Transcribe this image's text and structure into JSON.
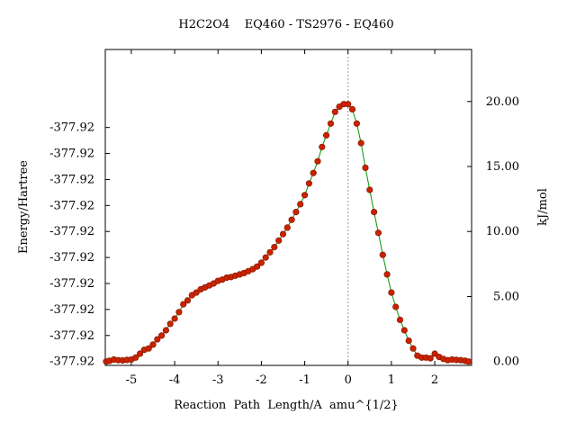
{
  "chart_data": {
    "type": "line",
    "title": "H2C2O4    EQ460 - TS2976 - EQ460",
    "xlabel": "Reaction  Path  Length/A  amu^{1/2}",
    "ylabel_left": "Energy/Hartree",
    "ylabel_right": "kJ/mol",
    "xlim": [
      -5.6,
      2.85
    ],
    "x_ticks": [
      -5,
      -4,
      -3,
      -2,
      -1,
      0,
      1,
      2
    ],
    "x_tick_labels": [
      "-5",
      "-4",
      "-3",
      "-2",
      "-1",
      "0",
      "1",
      "2"
    ],
    "y_left_tick_labels": [
      "-377.92",
      "-377.92",
      "-377.92",
      "-377.92",
      "-377.92",
      "-377.92",
      "-377.92",
      "-377.92",
      "-377.92",
      "-377.92"
    ],
    "y_left_ticks_kj": [
      0.0,
      2.0,
      4.0,
      6.0,
      8.0,
      10.0,
      12.0,
      14.0,
      16.0,
      18.0
    ],
    "ylim_right": [
      -0.3,
      24.0
    ],
    "y_right_ticks": [
      0.0,
      5.0,
      10.0,
      15.0,
      20.0
    ],
    "y_right_tick_labels": [
      "0.00",
      "5.00",
      "10.00",
      "15.00",
      "20.00"
    ],
    "ts_marker_x": 0,
    "grid": false,
    "colors": {
      "line": "#009900",
      "marker": "#cc2200",
      "marker_edge": "#8b1a00",
      "ts_line": "#999999"
    },
    "series": [
      {
        "x": [
          -5.58,
          -5.5,
          -5.4,
          -5.3,
          -5.2,
          -5.1,
          -5.0,
          -4.9,
          -4.8,
          -4.7,
          -4.6,
          -4.5,
          -4.4,
          -4.3,
          -4.2,
          -4.1,
          -4.0,
          -3.9,
          -3.8,
          -3.7,
          -3.6,
          -3.5,
          -3.4,
          -3.3,
          -3.2,
          -3.1,
          -3.0,
          -2.9,
          -2.8,
          -2.7,
          -2.6,
          -2.5,
          -2.4,
          -2.3,
          -2.2,
          -2.1,
          -2.0,
          -1.9,
          -1.8,
          -1.7,
          -1.6,
          -1.5,
          -1.4,
          -1.3,
          -1.2,
          -1.1,
          -1.0,
          -0.9,
          -0.8,
          -0.7,
          -0.6,
          -0.5,
          -0.4,
          -0.3,
          -0.2,
          -0.1,
          0.0,
          0.1,
          0.2,
          0.3,
          0.4,
          0.5,
          0.6,
          0.7,
          0.8,
          0.9,
          1.0,
          1.1,
          1.2,
          1.3,
          1.4,
          1.5,
          1.6,
          1.7,
          1.8,
          1.9,
          2.0,
          2.1,
          2.2,
          2.3,
          2.4,
          2.5,
          2.6,
          2.7,
          2.78
        ],
        "y": [
          0.0,
          0.05,
          0.15,
          0.1,
          0.08,
          0.12,
          0.15,
          0.3,
          0.6,
          0.9,
          1.0,
          1.3,
          1.7,
          2.0,
          2.4,
          2.9,
          3.3,
          3.8,
          4.4,
          4.7,
          5.1,
          5.3,
          5.55,
          5.7,
          5.85,
          6.0,
          6.2,
          6.3,
          6.45,
          6.5,
          6.6,
          6.7,
          6.8,
          6.95,
          7.1,
          7.3,
          7.6,
          8.0,
          8.4,
          8.8,
          9.3,
          9.8,
          10.3,
          10.9,
          11.5,
          12.1,
          12.8,
          13.7,
          14.5,
          15.4,
          16.5,
          17.4,
          18.3,
          19.2,
          19.6,
          19.8,
          19.8,
          19.4,
          18.3,
          16.8,
          14.9,
          13.2,
          11.5,
          9.9,
          8.2,
          6.7,
          5.3,
          4.2,
          3.2,
          2.4,
          1.6,
          1.0,
          0.45,
          0.3,
          0.3,
          0.25,
          0.6,
          0.35,
          0.2,
          0.1,
          0.15,
          0.12,
          0.1,
          0.05,
          0.0
        ]
      }
    ]
  }
}
